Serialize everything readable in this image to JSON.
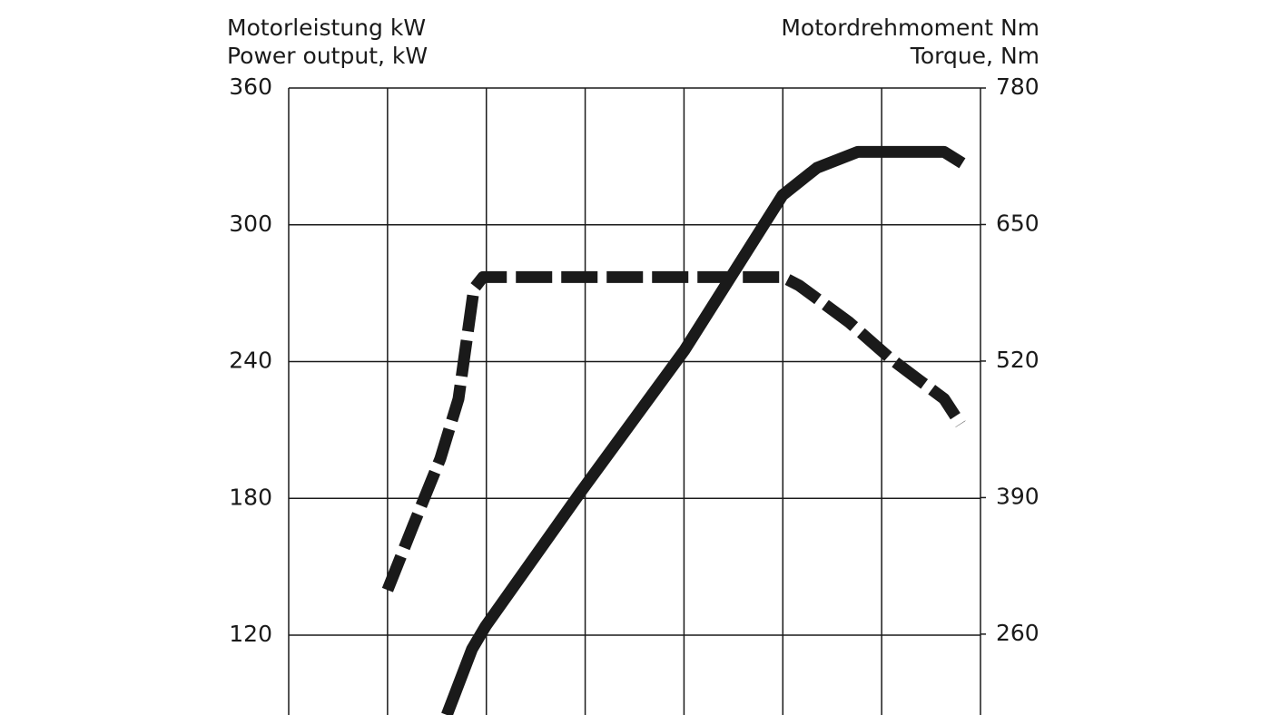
{
  "chart_data": {
    "type": "line",
    "y_title": [
      "Motorleistung kW",
      "Power output, kW"
    ],
    "y2_title": [
      "Motordrehmoment Nm",
      "Torque, Nm"
    ],
    "xlim": [
      0,
      7000
    ],
    "xticks": [
      0,
      1000,
      2000,
      3000,
      4000,
      5000,
      6000,
      7000
    ],
    "ylim": [
      85,
      360
    ],
    "yticks": [
      120,
      180,
      240,
      300,
      360
    ],
    "y2lim": [
      183,
      780
    ],
    "y2ticks": [
      260,
      390,
      520,
      650,
      780
    ],
    "grid": true,
    "series": [
      {
        "color": "#1a1a1a",
        "dashed": false,
        "axis": "y",
        "x": [
          1600,
          1856,
          1993,
          2958,
          4005,
          4997,
          5346,
          5760,
          6632,
          6816
        ],
        "values": [
          85,
          114,
          124,
          183,
          245,
          313,
          325,
          332,
          332,
          327
        ]
      },
      {
        "color": "#1a1a1a",
        "dashed": true,
        "axis": "y2",
        "x": [
          1000,
          1258,
          1534,
          1718,
          1874,
          1966,
          5000,
          5165,
          5670,
          6081,
          6632,
          6798
        ],
        "values": [
          302,
          363,
          427,
          484,
          589,
          600,
          600,
          592,
          557,
          523,
          484,
          460
        ]
      }
    ]
  }
}
